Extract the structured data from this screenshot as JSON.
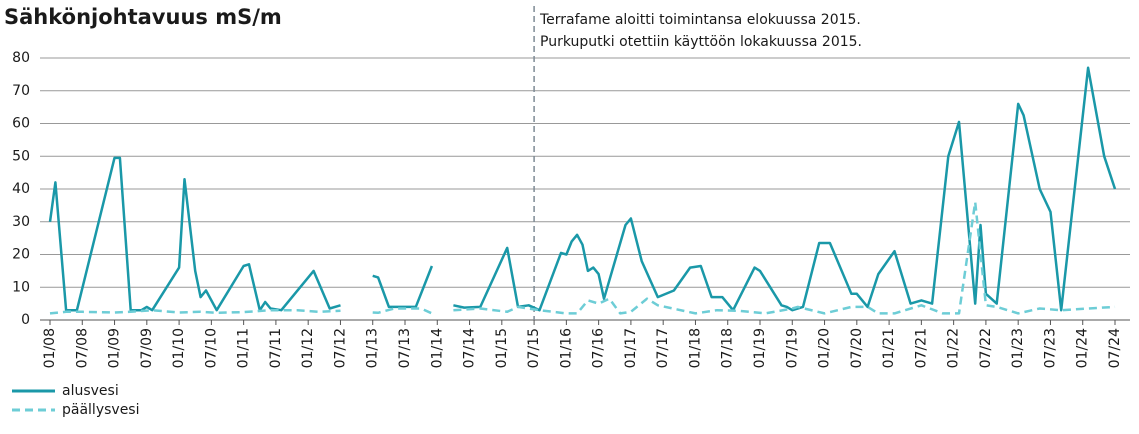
{
  "chart_data": {
    "type": "line",
    "title": "Sähkönjohtavuus mS/m",
    "annotation": [
      "Terrafame aloitti toimintansa elokuussa 2015.",
      "Purkuputki otettiin käyttöön lokakuussa 2015."
    ],
    "vline": "07/15",
    "ylim": [
      0,
      80
    ],
    "yticks": [
      0,
      10,
      20,
      30,
      40,
      50,
      60,
      70,
      80
    ],
    "grid": true,
    "xticks": [
      "01/08",
      "07/08",
      "01/09",
      "07/09",
      "01/10",
      "07/10",
      "01/11",
      "07/11",
      "01/12",
      "07/12",
      "01/13",
      "07/13",
      "01/14",
      "07/14",
      "01/15",
      "07/15",
      "01/16",
      "07/16",
      "01/17",
      "07/17",
      "01/18",
      "07/18",
      "01/19",
      "07/19",
      "01/20",
      "07/20",
      "01/21",
      "07/21",
      "01/22",
      "07/22",
      "01/23",
      "07/23",
      "01/24",
      "07/24"
    ],
    "series": [
      {
        "name": "alusvesi",
        "color": "#1a98a8",
        "dashed": false,
        "x": [
          "01/08",
          "02/08",
          "04/08",
          "06/08",
          "01/09",
          "02/09",
          "04/09",
          "06/09",
          "07/09",
          "08/09",
          "01/10",
          "02/10",
          "04/10",
          "05/10",
          "06/10",
          "08/10",
          "01/11",
          "02/11",
          "04/11",
          "05/11",
          "06/11",
          "08/11",
          "02/12",
          "05/12",
          "07/12",
          "10/12",
          "01/13",
          "02/13",
          "04/13",
          "09/13",
          "12/13",
          "03/14",
          "04/14",
          "06/14",
          "09/14",
          "02/15",
          "04/15",
          "06/15",
          "08/15",
          "12/15",
          "01/16",
          "02/16",
          "03/16",
          "04/16",
          "05/16",
          "06/16",
          "07/16",
          "08/16",
          "12/16",
          "01/17",
          "03/17",
          "06/17",
          "09/17",
          "12/17",
          "02/18",
          "04/18",
          "06/18",
          "08/18",
          "12/18",
          "01/19",
          "05/19",
          "06/19",
          "07/19",
          "09/19",
          "12/19",
          "02/20",
          "06/20",
          "07/20",
          "09/20",
          "11/20",
          "02/21",
          "05/21",
          "07/21",
          "09/21",
          "12/21",
          "02/22",
          "05/22",
          "06/22",
          "07/22",
          "09/22",
          "01/23",
          "02/23",
          "05/23",
          "07/23",
          "09/23",
          "02/24",
          "05/24",
          "07/24"
        ],
        "values": [
          30,
          42,
          3,
          3,
          49.5,
          49.5,
          3,
          3,
          4,
          3,
          16,
          43,
          15,
          7,
          9,
          3,
          16.5,
          17,
          3,
          5.5,
          3.5,
          3,
          15,
          3.5,
          4.5,
          null,
          13.5,
          13,
          4,
          4,
          16.5,
          null,
          4.5,
          3.8,
          4,
          22,
          4,
          4.5,
          3,
          20.5,
          20,
          24,
          26,
          23,
          15,
          16,
          14,
          6.5,
          29,
          31,
          18,
          7,
          9,
          16,
          16.5,
          7,
          7,
          3,
          16,
          15,
          4.5,
          4,
          3,
          4,
          23.5,
          23.5,
          8,
          8,
          4,
          14,
          21,
          5,
          6,
          5,
          50,
          60.5,
          5,
          29,
          8,
          5,
          66,
          62.5,
          40,
          33,
          3,
          77,
          50,
          40
        ]
      },
      {
        "name": "päällysvesi",
        "color": "#6dcdd6",
        "dashed": true,
        "x": [
          "01/08",
          "04/08",
          "07/08",
          "01/09",
          "04/09",
          "08/09",
          "01/10",
          "05/10",
          "08/10",
          "01/11",
          "06/11",
          "11/11",
          "03/12",
          "07/12",
          "10/12",
          "01/13",
          "02/13",
          "05/13",
          "10/13",
          "12/13",
          "03/14",
          "04/14",
          "09/14",
          "02/15",
          "04/15",
          "08/15",
          "01/16",
          "03/16",
          "05/16",
          "07/16",
          "09/16",
          "11/16",
          "01/17",
          "04/17",
          "06/17",
          "01/18",
          "05/18",
          "09/18",
          "02/19",
          "07/19",
          "08/19",
          "01/20",
          "06/20",
          "09/20",
          "11/20",
          "02/21",
          "07/21",
          "11/21",
          "02/22",
          "05/22",
          "07/22",
          "09/22",
          "01/23",
          "05/23",
          "09/23",
          "02/24",
          "07/24"
        ],
        "values": [
          2,
          2.5,
          2.5,
          2.3,
          2.5,
          3,
          2.3,
          2.5,
          2.2,
          2.4,
          3,
          3,
          2.5,
          2.8,
          null,
          2.3,
          2.2,
          3.5,
          3.5,
          2,
          null,
          3,
          3.5,
          2.5,
          4,
          3,
          2,
          2,
          6,
          5,
          6.5,
          2,
          2.5,
          6.5,
          4.5,
          2,
          3,
          2.8,
          2,
          3.5,
          4,
          2,
          4,
          4,
          2,
          2,
          4.5,
          2,
          2,
          36,
          4.5,
          4,
          2,
          3.5,
          3,
          3.5,
          4
        ]
      }
    ]
  }
}
